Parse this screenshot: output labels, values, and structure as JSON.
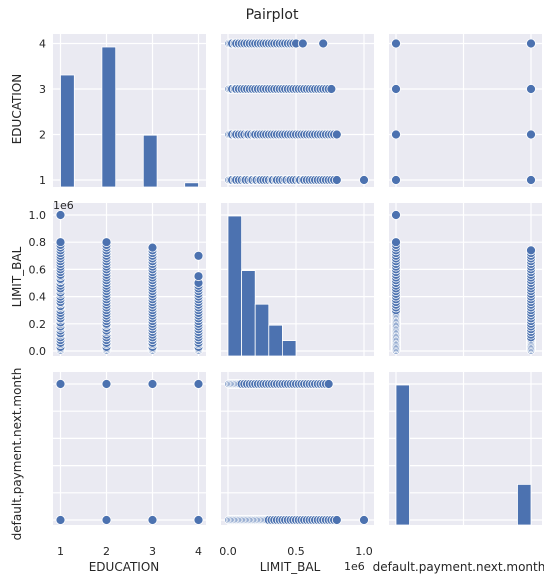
{
  "chart_data": {
    "type": "pairplot",
    "title": "Pairplot",
    "variables": [
      "EDUCATION",
      "LIMIT_BAL",
      "default.payment.next.month"
    ],
    "colors": {
      "marker": "#4c72b0",
      "panel_bg": "#eaeaf2",
      "grid": "#ffffff",
      "text": "#262626"
    },
    "grid": true,
    "axes": {
      "EDUCATION": {
        "ticks": [
          1,
          2,
          3,
          4
        ],
        "tick_labels": [
          "1",
          "2",
          "3",
          "4"
        ],
        "offset_label": ""
      },
      "LIMIT_BAL": {
        "ticks": [
          0,
          200000,
          400000,
          600000,
          800000,
          1000000
        ],
        "tick_labels": [
          "0.0",
          "0.2",
          "0.4",
          "0.6",
          "0.8",
          "1.0"
        ],
        "x_ticks": [
          0,
          500000,
          1000000
        ],
        "x_tick_labels": [
          "0.0",
          "0.5",
          "1.0"
        ],
        "offset_label": "1e6"
      },
      "default.payment.next.month": {
        "ticks": [
          0,
          0.2,
          0.4,
          0.6,
          0.8,
          1.0
        ],
        "tick_labels": [
          "0.0",
          "0.2",
          "0.4",
          "0.6",
          "0.8",
          "1.0"
        ],
        "x_ticks": [
          0,
          0.5,
          1.0
        ],
        "x_tick_labels": [
          "0.0",
          "0.5",
          "1.0"
        ],
        "offset_label": ""
      }
    },
    "histograms": {
      "EDUCATION": {
        "bins": [
          {
            "x0": 1.0,
            "x1": 1.3,
            "count": 0.8
          },
          {
            "x0": 1.9,
            "x1": 2.2,
            "count": 1.0
          },
          {
            "x0": 2.8,
            "x1": 3.1,
            "count": 0.37
          },
          {
            "x0": 3.7,
            "x1": 4.0,
            "count": 0.03
          }
        ]
      },
      "LIMIT_BAL": {
        "bins": [
          {
            "x0": 0,
            "x1": 100000,
            "count": 1.0
          },
          {
            "x0": 100000,
            "x1": 200000,
            "count": 0.61
          },
          {
            "x0": 200000,
            "x1": 300000,
            "count": 0.37
          },
          {
            "x0": 300000,
            "x1": 400000,
            "count": 0.22
          },
          {
            "x0": 400000,
            "x1": 500000,
            "count": 0.11
          }
        ]
      },
      "default.payment.next.month": {
        "bins": [
          {
            "x0": 0.0,
            "x1": 0.1,
            "count": 1.0
          },
          {
            "x0": 0.9,
            "x1": 1.0,
            "count": 0.29
          }
        ]
      }
    },
    "scatter_values": {
      "EDUCATION": [
        1,
        2,
        3,
        4
      ],
      "default.payment.next.month": [
        0,
        1
      ],
      "LIMIT_BAL_by_EDUCATION": {
        "1": [
          10000,
          20000,
          30000,
          50000,
          60000,
          80000,
          100000,
          120000,
          130000,
          150000,
          170000,
          180000,
          200000,
          210000,
          230000,
          240000,
          260000,
          280000,
          300000,
          320000,
          330000,
          350000,
          360000,
          380000,
          400000,
          420000,
          430000,
          450000,
          460000,
          480000,
          500000,
          520000,
          530000,
          550000,
          560000,
          580000,
          600000,
          620000,
          640000,
          660000,
          680000,
          700000,
          720000,
          740000,
          760000,
          780000,
          800000,
          1000000
        ],
        "2": [
          10000,
          20000,
          30000,
          50000,
          60000,
          80000,
          100000,
          120000,
          140000,
          150000,
          170000,
          190000,
          200000,
          220000,
          240000,
          260000,
          280000,
          300000,
          320000,
          340000,
          360000,
          380000,
          400000,
          420000,
          440000,
          460000,
          480000,
          500000,
          520000,
          540000,
          560000,
          580000,
          600000,
          620000,
          640000,
          660000,
          680000,
          700000,
          720000,
          740000,
          760000,
          780000,
          800000
        ],
        "3": [
          10000,
          20000,
          30000,
          50000,
          60000,
          80000,
          100000,
          120000,
          140000,
          160000,
          180000,
          200000,
          220000,
          240000,
          260000,
          280000,
          300000,
          320000,
          340000,
          360000,
          380000,
          400000,
          420000,
          440000,
          460000,
          480000,
          500000,
          520000,
          540000,
          560000,
          580000,
          600000,
          620000,
          640000,
          660000,
          680000,
          700000,
          720000,
          740000,
          760000
        ],
        "4": [
          10000,
          20000,
          30000,
          50000,
          60000,
          80000,
          100000,
          120000,
          140000,
          160000,
          180000,
          200000,
          220000,
          240000,
          260000,
          280000,
          300000,
          320000,
          340000,
          360000,
          380000,
          400000,
          420000,
          440000,
          460000,
          480000,
          500000,
          550000,
          700000
        ]
      },
      "LIMIT_BAL_by_default": {
        "0": [
          10000,
          20000,
          30000,
          40000,
          50000,
          60000,
          70000,
          80000,
          90000,
          100000,
          110000,
          120000,
          130000,
          140000,
          150000,
          160000,
          170000,
          180000,
          190000,
          200000,
          210000,
          220000,
          230000,
          240000,
          250000,
          260000,
          270000,
          280000,
          290000,
          300000,
          320000,
          340000,
          360000,
          380000,
          400000,
          420000,
          440000,
          460000,
          480000,
          500000,
          520000,
          540000,
          560000,
          580000,
          600000,
          620000,
          640000,
          660000,
          680000,
          700000,
          720000,
          740000,
          760000,
          780000,
          800000,
          1000000
        ],
        "1": [
          10000,
          20000,
          30000,
          40000,
          50000,
          60000,
          70000,
          80000,
          90000,
          100000,
          120000,
          140000,
          160000,
          180000,
          200000,
          220000,
          240000,
          260000,
          280000,
          300000,
          320000,
          340000,
          360000,
          380000,
          400000,
          420000,
          440000,
          460000,
          480000,
          500000,
          520000,
          540000,
          560000,
          580000,
          600000,
          620000,
          640000,
          660000,
          680000,
          700000,
          720000,
          740000
        ]
      }
    }
  }
}
